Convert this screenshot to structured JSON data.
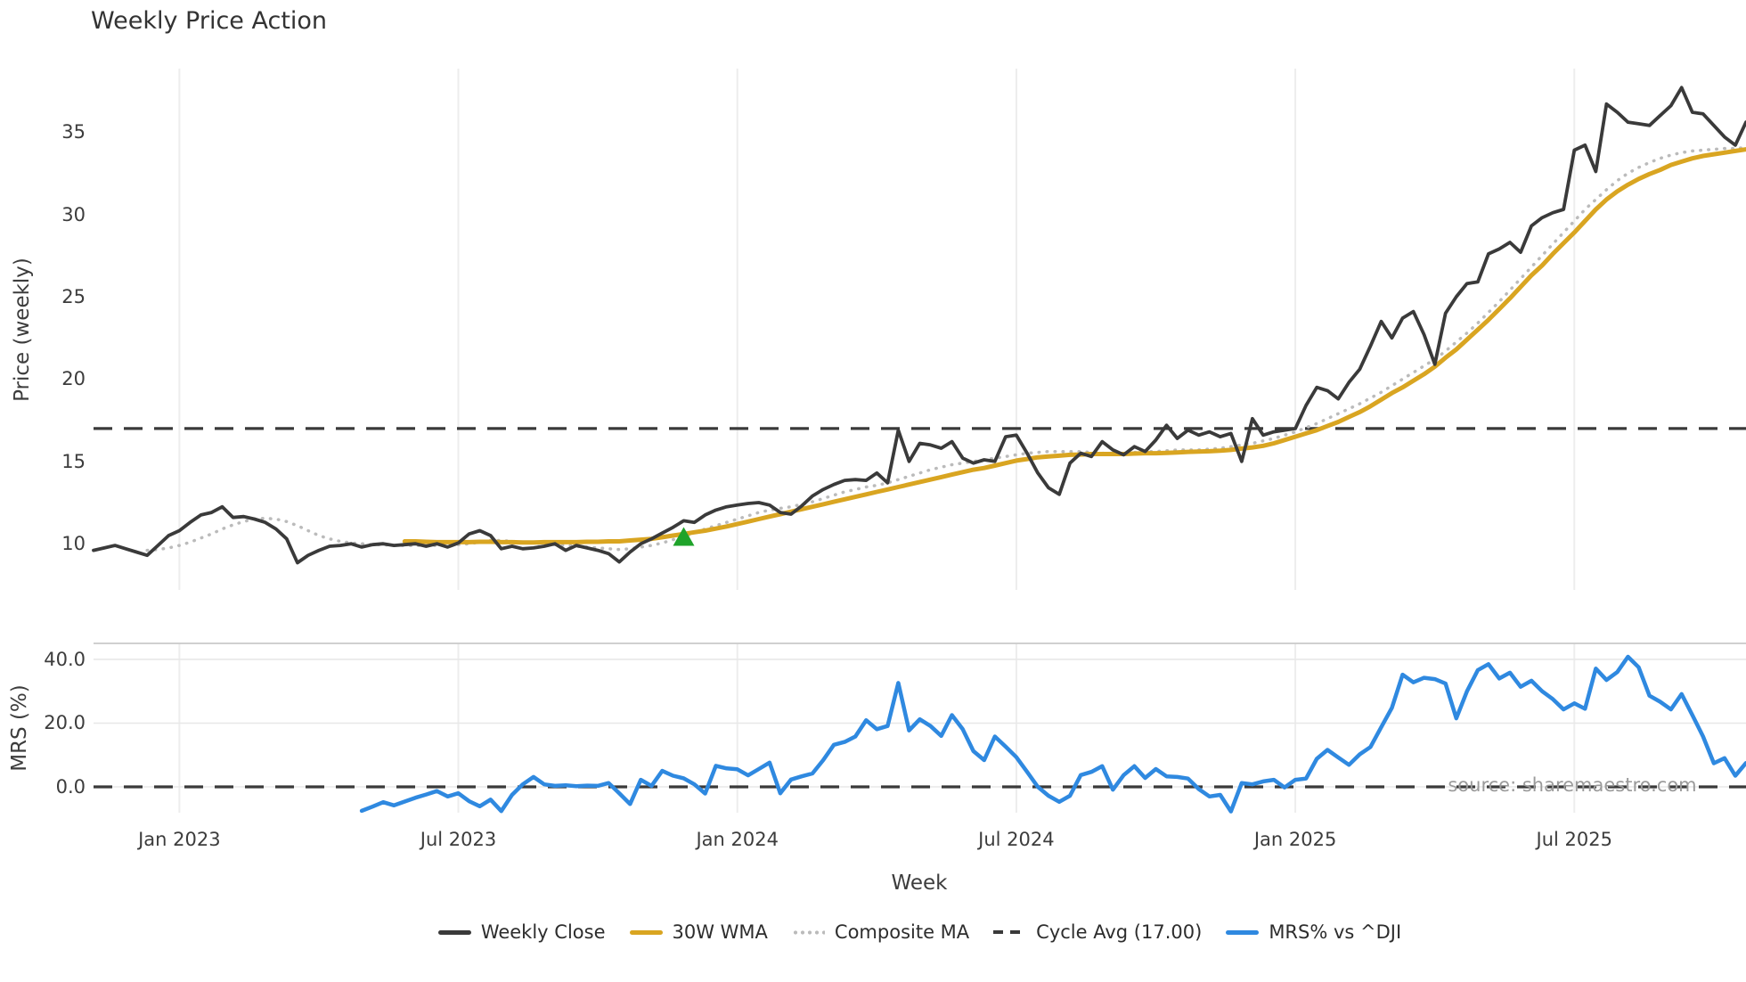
{
  "watermark": "source: sharemaestro.com",
  "legend": {
    "items": [
      {
        "label": "Weekly Close",
        "color": "#3a3a3a",
        "style": "solid"
      },
      {
        "label": "30W WMA",
        "color": "#d9a521",
        "style": "solid"
      },
      {
        "label": "Composite MA",
        "color": "#bbbbbb",
        "style": "dotted"
      },
      {
        "label": "Cycle Avg (17.00)",
        "color": "#3a3a3a",
        "style": "dashed"
      },
      {
        "label": "MRS% vs ^DJI",
        "color": "#2f89e0",
        "style": "solid"
      }
    ]
  },
  "chart_data": {
    "type": "line",
    "title": "Weekly Price Action",
    "x": {
      "unit": "week_index",
      "count": 155,
      "xlabel": "Week",
      "ticks": [
        {
          "index": 8,
          "label": "Jan 2023"
        },
        {
          "index": 34,
          "label": "Jul 2023"
        },
        {
          "index": 60,
          "label": "Jan 2024"
        },
        {
          "index": 86,
          "label": "Jul 2024"
        },
        {
          "index": 112,
          "label": "Jan 2025"
        },
        {
          "index": 138,
          "label": "Jul 2025"
        }
      ]
    },
    "panels": [
      {
        "name": "price",
        "ylabel": "Price (weekly)",
        "ylim": [
          7.2,
          38.85
        ],
        "yticks": [
          {
            "value": 10,
            "label": "10"
          },
          {
            "value": 15,
            "label": "15"
          },
          {
            "value": 20,
            "label": "20"
          },
          {
            "value": 25,
            "label": "25"
          },
          {
            "value": 30,
            "label": "30"
          },
          {
            "value": 35,
            "label": "35"
          }
        ],
        "grid_horizontal": false,
        "hline": {
          "value": 17,
          "label": "Cycle Avg (17.00)",
          "style": "dashed",
          "color": "#3a3a3a"
        },
        "marker": {
          "type": "triangle-up",
          "color": "#1fa32a",
          "index": 55,
          "value": 10.42
        },
        "series": [
          {
            "name": "Composite MA",
            "color": "#bbbbbb",
            "style": "dotted",
            "width": 3.5,
            "start_index": 5,
            "values": [
              9.6,
              9.65,
              9.75,
              9.9,
              10.1,
              10.35,
              10.6,
              10.9,
              11.15,
              11.35,
              11.5,
              11.55,
              11.5,
              11.35,
              11.1,
              10.8,
              10.5,
              10.3,
              10.15,
              10.05,
              10.0,
              9.95,
              9.95,
              9.9,
              9.9,
              9.9,
              9.9,
              9.9,
              9.9,
              9.95,
              10.0,
              10.1,
              10.2,
              10.2,
              10.15,
              10.1,
              10.05,
              10.0,
              9.95,
              9.9,
              9.85,
              9.8,
              9.75,
              9.7,
              9.65,
              9.7,
              9.8,
              9.9,
              10.05,
              10.25,
              10.45,
              10.65,
              10.9,
              11.1,
              11.3,
              11.5,
              11.7,
              11.9,
              12.05,
              12.15,
              12.25,
              12.4,
              12.55,
              12.75,
              12.95,
              13.15,
              13.3,
              13.45,
              13.55,
              13.7,
              13.9,
              14.1,
              14.3,
              14.5,
              14.65,
              14.8,
              14.9,
              15.0,
              15.1,
              15.2,
              15.3,
              15.4,
              15.5,
              15.55,
              15.6,
              15.6,
              15.6,
              15.6,
              15.55,
              15.5,
              15.5,
              15.5,
              15.55,
              15.6,
              15.6,
              15.65,
              15.7,
              15.7,
              15.7,
              15.75,
              15.8,
              15.9,
              16.0,
              16.1,
              16.25,
              16.4,
              16.6,
              16.8,
              17.05,
              17.3,
              17.6,
              17.9,
              18.2,
              18.5,
              18.85,
              19.2,
              19.6,
              20.0,
              20.4,
              20.8,
              21.2,
              21.7,
              22.25,
              22.8,
              23.4,
              24.05,
              24.7,
              25.4,
              26.1,
              26.8,
              27.5,
              28.2,
              28.9,
              29.6,
              30.3,
              30.9,
              31.5,
              32.05,
              32.5,
              32.85,
              33.15,
              33.4,
              33.6,
              33.75,
              33.85,
              33.9,
              33.95,
              34.0,
              34.0,
              34.05
            ]
          },
          {
            "name": "30W WMA",
            "color": "#d9a521",
            "style": "solid",
            "width": 5,
            "start_index": 29,
            "values": [
              10.15,
              10.15,
              10.12,
              10.1,
              10.1,
              10.1,
              10.1,
              10.12,
              10.12,
              10.1,
              10.1,
              10.08,
              10.08,
              10.1,
              10.1,
              10.1,
              10.1,
              10.12,
              10.12,
              10.15,
              10.15,
              10.2,
              10.25,
              10.3,
              10.4,
              10.5,
              10.6,
              10.7,
              10.8,
              10.92,
              11.05,
              11.2,
              11.35,
              11.5,
              11.65,
              11.8,
              11.95,
              12.1,
              12.25,
              12.4,
              12.55,
              12.7,
              12.85,
              13.0,
              13.15,
              13.3,
              13.45,
              13.6,
              13.75,
              13.9,
              14.05,
              14.2,
              14.35,
              14.5,
              14.6,
              14.75,
              14.9,
              15.05,
              15.15,
              15.25,
              15.3,
              15.35,
              15.4,
              15.42,
              15.45,
              15.45,
              15.45,
              15.45,
              15.48,
              15.5,
              15.5,
              15.52,
              15.55,
              15.58,
              15.6,
              15.62,
              15.65,
              15.7,
              15.78,
              15.85,
              15.95,
              16.1,
              16.3,
              16.5,
              16.7,
              16.9,
              17.15,
              17.4,
              17.7,
              18.0,
              18.35,
              18.75,
              19.15,
              19.5,
              19.9,
              20.3,
              20.75,
              21.3,
              21.8,
              22.4,
              23.0,
              23.6,
              24.25,
              24.9,
              25.6,
              26.3,
              26.9,
              27.6,
              28.25,
              28.9,
              29.6,
              30.3,
              30.9,
              31.4,
              31.8,
              32.15,
              32.45,
              32.7,
              33.0,
              33.2,
              33.4,
              33.55,
              33.65,
              33.75,
              33.85,
              33.95
            ]
          },
          {
            "name": "Weekly Close",
            "color": "#3a3a3a",
            "style": "solid",
            "width": 3.8,
            "start_index": 0,
            "values": [
              9.6,
              9.75,
              9.9,
              9.7,
              9.5,
              9.3,
              9.9,
              10.5,
              10.8,
              11.3,
              11.75,
              11.9,
              12.25,
              11.6,
              11.65,
              11.5,
              11.3,
              10.9,
              10.3,
              8.85,
              9.3,
              9.6,
              9.85,
              9.9,
              10.0,
              9.8,
              9.95,
              10.0,
              9.9,
              9.95,
              10.0,
              9.85,
              10.0,
              9.8,
              10.05,
              10.6,
              10.8,
              10.5,
              9.7,
              9.85,
              9.7,
              9.75,
              9.85,
              10.0,
              9.6,
              9.9,
              9.75,
              9.6,
              9.4,
              8.9,
              9.5,
              10.0,
              10.3,
              10.65,
              11.0,
              11.4,
              11.3,
              11.75,
              12.05,
              12.25,
              12.35,
              12.45,
              12.5,
              12.35,
              11.9,
              11.8,
              12.3,
              12.9,
              13.3,
              13.6,
              13.85,
              13.9,
              13.85,
              14.3,
              13.7,
              16.9,
              15.0,
              16.1,
              16.0,
              15.8,
              16.2,
              15.2,
              14.9,
              15.1,
              15.0,
              16.5,
              16.6,
              15.5,
              14.3,
              13.4,
              13.0,
              14.9,
              15.5,
              15.3,
              16.2,
              15.7,
              15.4,
              15.9,
              15.6,
              16.3,
              17.2,
              16.4,
              16.9,
              16.6,
              16.8,
              16.5,
              16.7,
              15.0,
              17.6,
              16.6,
              16.8,
              16.9,
              17.0,
              18.4,
              19.5,
              19.3,
              18.8,
              19.8,
              20.6,
              22.0,
              23.5,
              22.5,
              23.7,
              24.1,
              22.7,
              20.9,
              24.0,
              25.0,
              25.8,
              25.9,
              27.6,
              27.9,
              28.3,
              27.7,
              29.3,
              29.8,
              30.1,
              30.3,
              33.9,
              34.2,
              32.6,
              36.7,
              36.2,
              35.6,
              35.5,
              35.4,
              36.0,
              36.6,
              37.7,
              36.2,
              36.1,
              35.4,
              34.7,
              34.2,
              35.6
            ]
          }
        ]
      },
      {
        "name": "mrs",
        "ylabel": "MRS (%)",
        "ylim": [
          -8.1,
          45
        ],
        "yticks": [
          {
            "value": 0,
            "label": "0.0"
          },
          {
            "value": 20,
            "label": "20.0"
          },
          {
            "value": 40,
            "label": "40.0"
          }
        ],
        "grid_horizontal": true,
        "hline": {
          "value": 0,
          "style": "dashed",
          "color": "#3a3a3a"
        },
        "series": [
          {
            "name": "MRS% vs ^DJI",
            "color": "#2f89e0",
            "style": "solid",
            "width": 4.5,
            "start_index": 25,
            "values": [
              -7.5,
              -6.2,
              -4.8,
              -5.8,
              -4.6,
              -3.4,
              -2.4,
              -1.3,
              -3.0,
              -2.0,
              -4.5,
              -6.1,
              -4.0,
              -7.6,
              -2.5,
              0.8,
              3.1,
              0.8,
              0.3,
              0.5,
              0.2,
              0.4,
              0.3,
              1.2,
              -2.0,
              -5.4,
              2.2,
              0.3,
              5.0,
              3.5,
              2.7,
              0.8,
              -2.1,
              6.6,
              5.8,
              5.5,
              3.6,
              5.6,
              7.6,
              -2.0,
              2.3,
              3.3,
              4.2,
              8.4,
              13.2,
              14.1,
              15.8,
              20.9,
              18.1,
              19.1,
              32.6,
              17.7,
              21.2,
              19.1,
              16.0,
              22.5,
              18.1,
              11.2,
              8.4,
              15.8,
              12.6,
              9.3,
              4.7,
              0.0,
              -2.8,
              -4.7,
              -2.8,
              3.7,
              4.7,
              6.5,
              -0.9,
              3.7,
              6.5,
              2.8,
              5.6,
              3.3,
              3.1,
              2.6,
              -0.7,
              -3.0,
              -2.5,
              -7.7,
              1.2,
              0.8,
              1.7,
              2.2,
              -0.2,
              2.2,
              2.6,
              8.8,
              11.6,
              9.2,
              6.9,
              10.2,
              12.5,
              18.7,
              24.8,
              35.2,
              32.8,
              34.2,
              33.8,
              32.4,
              21.5,
              30.0,
              36.6,
              38.5,
              34.0,
              35.8,
              31.4,
              33.3,
              30.0,
              27.5,
              24.3,
              26.2,
              24.5,
              37.1,
              33.5,
              36.0,
              40.8,
              37.5,
              28.6,
              26.7,
              24.3,
              29.1,
              22.5,
              15.8,
              7.4,
              9.0,
              3.5,
              7.5
            ]
          }
        ]
      }
    ]
  }
}
